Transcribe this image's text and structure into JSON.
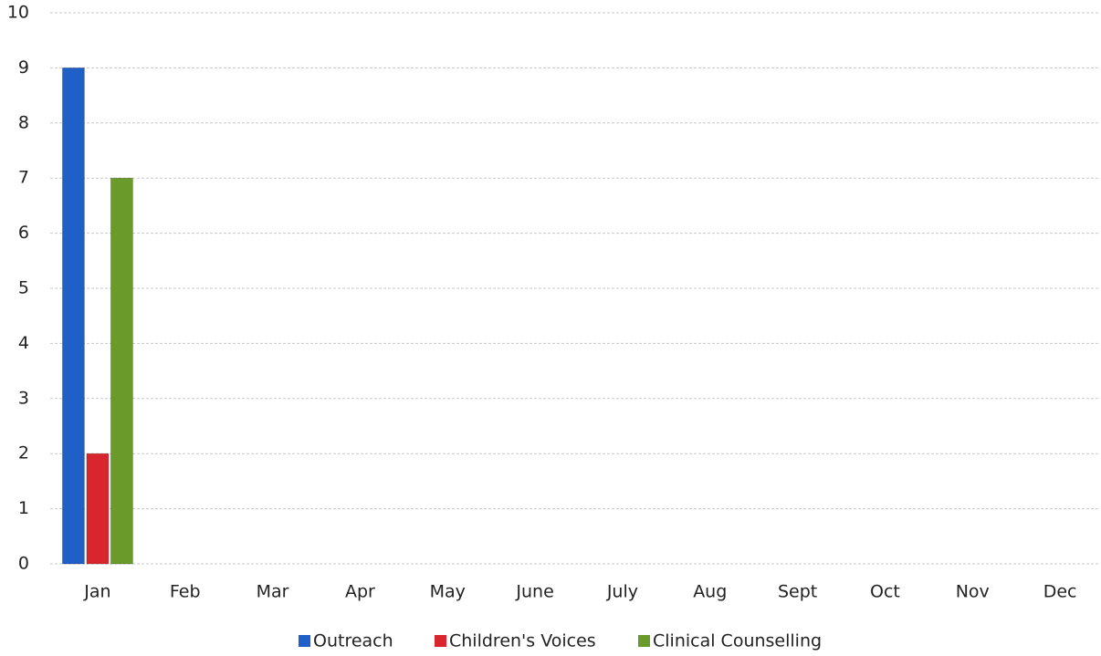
{
  "chart_data": {
    "type": "bar",
    "categories": [
      "Jan",
      "Feb",
      "Mar",
      "Apr",
      "May",
      "June",
      "July",
      "Aug",
      "Sept",
      "Oct",
      "Nov",
      "Dec"
    ],
    "series": [
      {
        "name": "Outreach",
        "color": "#1f5fc8",
        "values": [
          9,
          null,
          null,
          null,
          null,
          null,
          null,
          null,
          null,
          null,
          null,
          null
        ]
      },
      {
        "name": "Children's Voices",
        "color": "#d9262e",
        "values": [
          2,
          null,
          null,
          null,
          null,
          null,
          null,
          null,
          null,
          null,
          null,
          null
        ]
      },
      {
        "name": "Clinical Counselling",
        "color": "#6a9a2a",
        "values": [
          7,
          null,
          null,
          null,
          null,
          null,
          null,
          null,
          null,
          null,
          null,
          null
        ]
      }
    ],
    "ylim": [
      0,
      10
    ],
    "yticks": [
      0,
      1,
      2,
      3,
      4,
      5,
      6,
      7,
      8,
      9,
      10
    ],
    "grid": true,
    "legend": "bottom"
  }
}
